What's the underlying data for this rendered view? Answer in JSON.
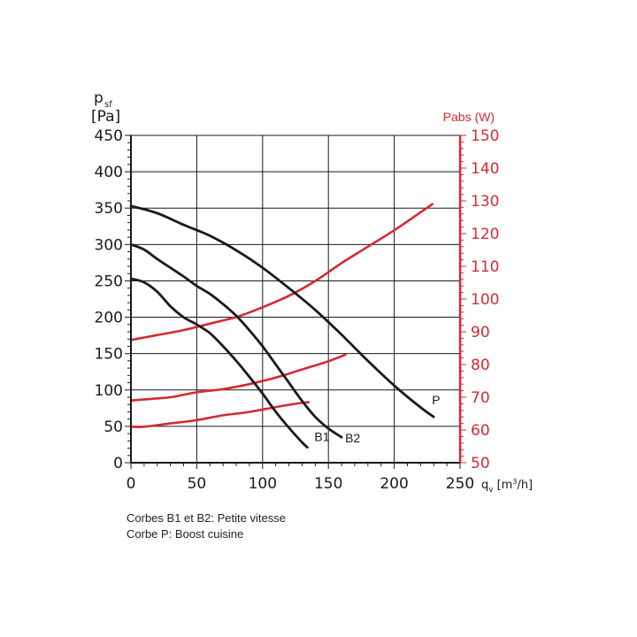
{
  "chart_data": {
    "type": "line",
    "left_axis": {
      "label_symbol": "p",
      "label_sub": "sf",
      "unit": "[Pa]",
      "range": [
        0,
        450
      ],
      "ticks": [
        0,
        50,
        100,
        150,
        200,
        250,
        300,
        350,
        400,
        450
      ]
    },
    "right_axis": {
      "label": "Pabs (W)",
      "range": [
        50,
        150
      ],
      "ticks": [
        50,
        60,
        70,
        80,
        90,
        100,
        110,
        120,
        130,
        140,
        150
      ],
      "color": "#d42a30"
    },
    "x_axis": {
      "label_symbol": "q",
      "label_sub": "v",
      "unit_prefix": "[m",
      "unit_sup": "3",
      "unit_suffix": "/h]",
      "range": [
        0,
        250
      ],
      "ticks": [
        0,
        50,
        100,
        150,
        200,
        250
      ]
    },
    "grid": true,
    "pressure_series": [
      {
        "name": "B1",
        "color": "#1a1a1a",
        "points": [
          [
            0,
            253
          ],
          [
            10,
            248
          ],
          [
            20,
            235
          ],
          [
            30,
            215
          ],
          [
            40,
            200
          ],
          [
            50,
            190
          ],
          [
            60,
            178
          ],
          [
            70,
            160
          ],
          [
            80,
            140
          ],
          [
            90,
            118
          ],
          [
            100,
            95
          ],
          [
            110,
            70
          ],
          [
            120,
            48
          ],
          [
            130,
            28
          ],
          [
            134,
            21
          ]
        ]
      },
      {
        "name": "B2",
        "color": "#1a1a1a",
        "points": [
          [
            0,
            300
          ],
          [
            10,
            293
          ],
          [
            20,
            280
          ],
          [
            30,
            268
          ],
          [
            40,
            256
          ],
          [
            50,
            243
          ],
          [
            60,
            232
          ],
          [
            70,
            218
          ],
          [
            80,
            202
          ],
          [
            90,
            182
          ],
          [
            100,
            160
          ],
          [
            110,
            135
          ],
          [
            120,
            110
          ],
          [
            130,
            85
          ],
          [
            140,
            63
          ],
          [
            150,
            47
          ],
          [
            160,
            35
          ]
        ]
      },
      {
        "name": "P",
        "color": "#1a1a1a",
        "points": [
          [
            0,
            353
          ],
          [
            20,
            343
          ],
          [
            40,
            327
          ],
          [
            60,
            312
          ],
          [
            80,
            292
          ],
          [
            100,
            268
          ],
          [
            120,
            240
          ],
          [
            140,
            210
          ],
          [
            160,
            176
          ],
          [
            180,
            140
          ],
          [
            200,
            106
          ],
          [
            220,
            76
          ],
          [
            230,
            63
          ]
        ]
      }
    ],
    "power_series": [
      {
        "color": "#d42a30",
        "points": [
          [
            0,
            61
          ],
          [
            10,
            61
          ],
          [
            30,
            62
          ],
          [
            50,
            63
          ],
          [
            70,
            64.5
          ],
          [
            90,
            65.5
          ],
          [
            110,
            67
          ],
          [
            125,
            68
          ],
          [
            135,
            68.5
          ]
        ]
      },
      {
        "color": "#d42a30",
        "points": [
          [
            0,
            69
          ],
          [
            15,
            69.5
          ],
          [
            30,
            70
          ],
          [
            50,
            71.5
          ],
          [
            70,
            72.5
          ],
          [
            90,
            74
          ],
          [
            110,
            76
          ],
          [
            130,
            78.5
          ],
          [
            150,
            81
          ],
          [
            163,
            83
          ]
        ]
      },
      {
        "color": "#d42a30",
        "points": [
          [
            0,
            87.5
          ],
          [
            20,
            89
          ],
          [
            40,
            90.5
          ],
          [
            60,
            92.5
          ],
          [
            80,
            94.5
          ],
          [
            100,
            97.5
          ],
          [
            120,
            101
          ],
          [
            140,
            105.5
          ],
          [
            160,
            111
          ],
          [
            180,
            116
          ],
          [
            200,
            121
          ],
          [
            220,
            126.5
          ],
          [
            229,
            129
          ]
        ]
      }
    ],
    "curve_labels": [
      "B1",
      "B2",
      "P"
    ]
  },
  "notes": [
    "Corbes B1 et B2: Petite vitesse",
    "Corbe P: Boost cuisine"
  ]
}
